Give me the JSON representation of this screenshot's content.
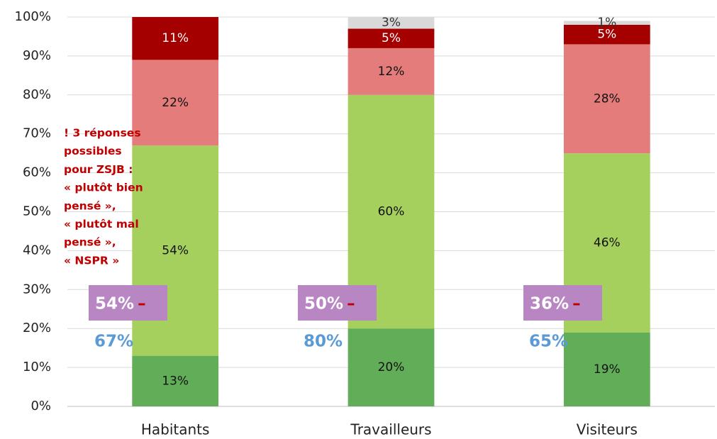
{
  "chart_data": {
    "type": "stacked_bar",
    "categories": [
      "Habitants",
      "Travailleurs",
      "Visiteurs"
    ],
    "series": [
      {
        "color": "#62ad58",
        "label_color": "#111111",
        "values": [
          13,
          20,
          19
        ],
        "value_labels": [
          "13%",
          "20%",
          "19%"
        ]
      },
      {
        "color": "#a6d05d",
        "label_color": "#111111",
        "values": [
          54,
          60,
          46
        ],
        "value_labels": [
          "54%",
          "60%",
          "46%"
        ]
      },
      {
        "color": "#e57c7c",
        "label_color": "#111111",
        "values": [
          22,
          12,
          28
        ],
        "value_labels": [
          "22%",
          "12%",
          "28%"
        ]
      },
      {
        "color": "#a50000",
        "label_color": "#ffffff",
        "values": [
          11,
          5,
          5
        ],
        "value_labels": [
          "11%",
          "5%",
          "5%"
        ]
      },
      {
        "color": "#d9d9d9",
        "label_color": "#333333",
        "values": [
          null,
          3,
          1
        ],
        "value_labels": [
          null,
          "3%",
          "1%"
        ]
      }
    ],
    "ylim": [
      0,
      100
    ],
    "yticks": [
      {
        "value": 0,
        "label": "0%"
      },
      {
        "value": 10,
        "label": "10%"
      },
      {
        "value": 20,
        "label": "20%"
      },
      {
        "value": 30,
        "label": "30%"
      },
      {
        "value": 40,
        "label": "40%"
      },
      {
        "value": 50,
        "label": "50%"
      },
      {
        "value": 60,
        "label": "60%"
      },
      {
        "value": 70,
        "label": "70%"
      },
      {
        "value": 80,
        "label": "80%"
      },
      {
        "value": 90,
        "label": "90%"
      },
      {
        "value": 100,
        "label": "100%"
      }
    ],
    "grid": true,
    "annotations": {
      "note": [
        "! 3 réponses",
        "possibles",
        "pour ZSJB :",
        "« plutôt bien",
        "pensé »,",
        "« plutôt mal",
        "pensé »,",
        "« NSPR »"
      ],
      "purple": [
        "54%",
        "50%",
        "36%"
      ],
      "dash": "–",
      "blue": [
        "67%",
        "80%",
        "65%"
      ]
    }
  }
}
